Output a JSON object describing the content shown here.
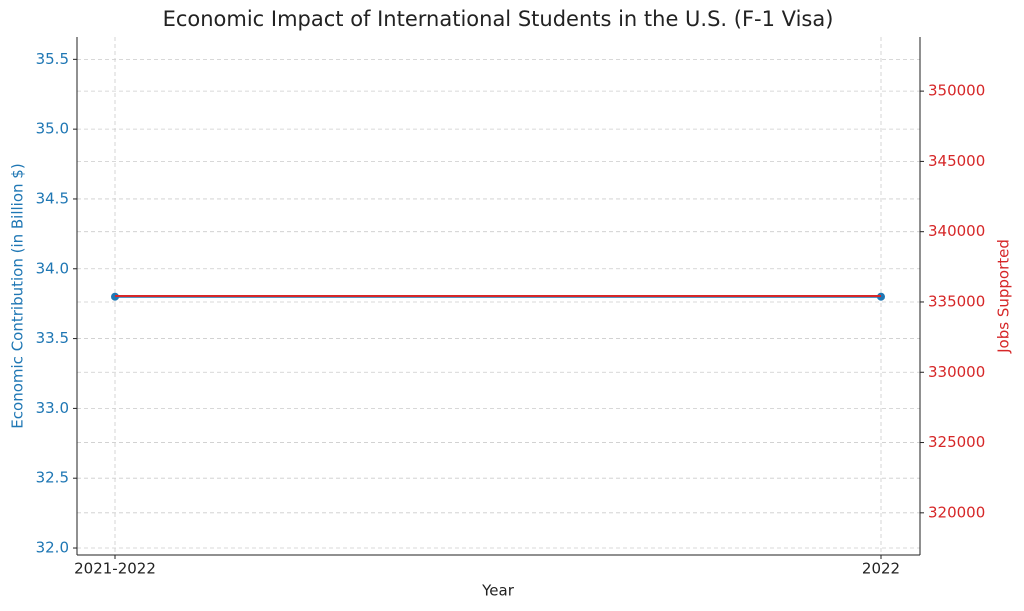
{
  "chart_data": {
    "type": "line",
    "title": "Economic Impact of International Students in the U.S. (F-1 Visa)",
    "x_label": "Year",
    "y_label": "Economic Contribution (in Billion $)",
    "y2_label": "Jobs Supported",
    "categories": [
      "2021-2022",
      "2022"
    ],
    "series": [
      {
        "name": "Economic Contribution (in Billion $)",
        "color": "#1f77b4",
        "values": [
          33.8,
          33.8
        ]
      },
      {
        "name": "Jobs Supported",
        "color": "#d62728",
        "axis": "y2",
        "values": [
          335423,
          335423
        ]
      }
    ],
    "ylim": [
      31.95,
      35.66
    ],
    "yticks": [
      {
        "value": 32,
        "label": "32.0"
      },
      {
        "value": 32.5,
        "label": "32.5"
      },
      {
        "value": 33,
        "label": "33.0"
      },
      {
        "value": 33.5,
        "label": "33.5"
      },
      {
        "value": 34,
        "label": "34.0"
      },
      {
        "value": 34.5,
        "label": "34.5"
      },
      {
        "value": 35,
        "label": "35.0"
      },
      {
        "value": 35.5,
        "label": "35.5"
      }
    ],
    "y2lim": [
      317000,
      353850
    ],
    "y2ticks": [
      320000,
      325000,
      330000,
      335000,
      340000,
      345000,
      350000
    ],
    "grid": true
  }
}
